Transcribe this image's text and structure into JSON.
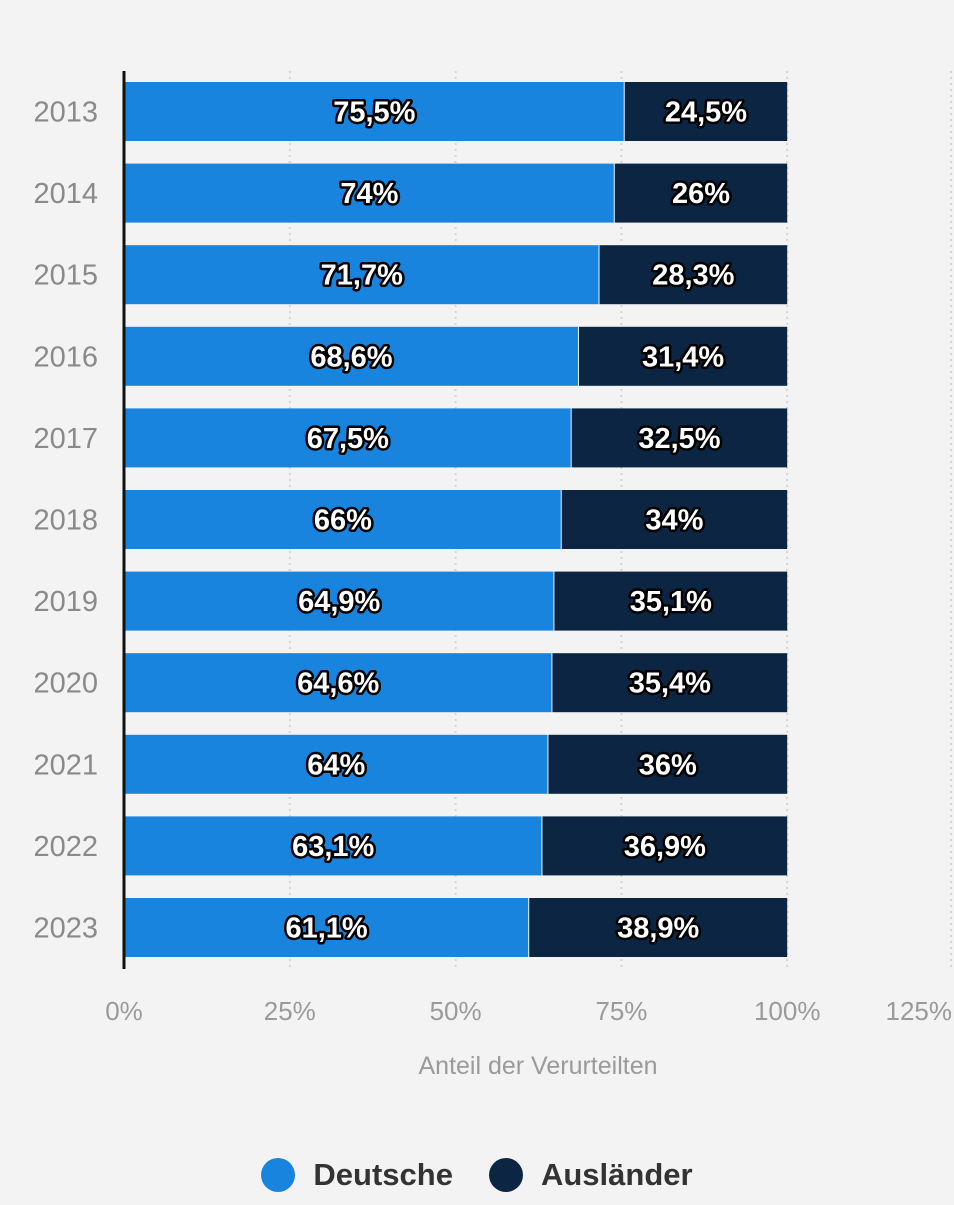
{
  "chart_data": {
    "type": "bar",
    "orientation": "horizontal",
    "stacked": true,
    "categories": [
      "2013",
      "2014",
      "2015",
      "2016",
      "2017",
      "2018",
      "2019",
      "2020",
      "2021",
      "2022",
      "2023"
    ],
    "series": [
      {
        "name": "Deutsche",
        "color": "#1984de",
        "values": [
          75.5,
          74,
          71.7,
          68.6,
          67.5,
          66,
          64.9,
          64.6,
          64,
          63.1,
          61.1
        ],
        "labels": [
          "75,5%",
          "74%",
          "71,7%",
          "68,6%",
          "67,5%",
          "66%",
          "64,9%",
          "64,6%",
          "64%",
          "63,1%",
          "61,1%"
        ]
      },
      {
        "name": "Ausländer",
        "color": "#0c2542",
        "values": [
          24.5,
          26,
          28.3,
          31.4,
          32.5,
          34,
          35.1,
          35.4,
          36,
          36.9,
          38.9
        ],
        "labels": [
          "24,5%",
          "26%",
          "28,3%",
          "31,4%",
          "32,5%",
          "34%",
          "35,1%",
          "35,4%",
          "36%",
          "36,9%",
          "38,9%"
        ]
      }
    ],
    "xlabel": "Anteil der Verurteilten",
    "xlim": [
      0,
      125
    ],
    "xticks": [
      0,
      25,
      50,
      75,
      100,
      125
    ],
    "xtick_labels": [
      "0%",
      "25%",
      "50%",
      "75%",
      "100%",
      "125%"
    ],
    "grid": true,
    "legend_position": "bottom-center"
  }
}
